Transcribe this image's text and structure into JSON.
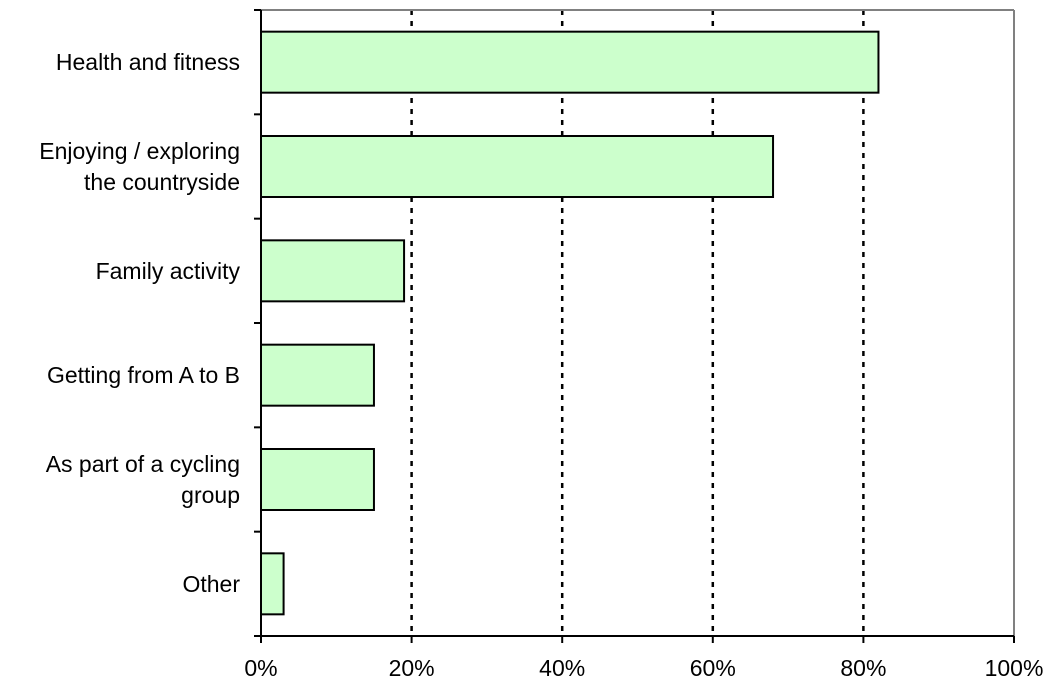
{
  "chart_data": {
    "type": "bar",
    "orientation": "horizontal",
    "categories": [
      [
        "Health and fitness"
      ],
      [
        "Enjoying / exploring",
        "the countryside"
      ],
      [
        "Family activity"
      ],
      [
        "Getting from A to B"
      ],
      [
        "As part of a cycling",
        "group"
      ],
      [
        "Other"
      ]
    ],
    "values": [
      82,
      68,
      19,
      15,
      15,
      3
    ],
    "xlim": [
      0,
      100
    ],
    "xticks": [
      0,
      20,
      40,
      60,
      80,
      100
    ],
    "xtick_labels": [
      "0%",
      "20%",
      "40%",
      "60%",
      "80%",
      "100%"
    ],
    "grid": "vertical dotted",
    "legend": "none",
    "colors": {
      "bar_fill": "#ccffcc",
      "bar_stroke": "#000000",
      "grid": "#000000",
      "frame": "#808080"
    }
  }
}
